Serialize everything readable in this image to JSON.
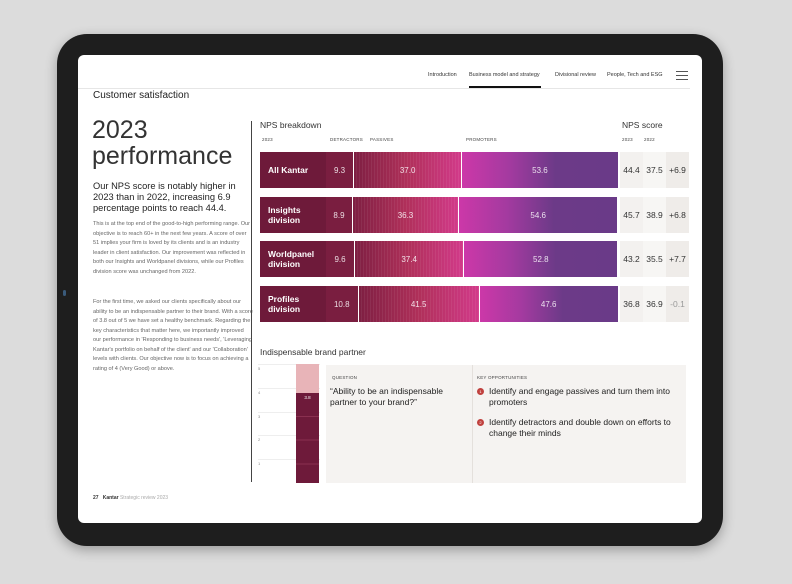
{
  "nav": {
    "items": [
      "Introduction",
      "Business model and strategy",
      "Divisional review",
      "People, Tech and ESG"
    ],
    "active": "Business model and strategy"
  },
  "section_title": "Customer satisfaction",
  "headline": {
    "line1": "2023",
    "line2": "performance"
  },
  "lead": "Our NPS score is notably higher in 2023 than in 2022, increasing 6.9 percentage points to reach 44.4.",
  "para1": "This is at the top end of the good-to-high performing range. Our objective is to reach 60+ in the next few years. A score of over 51 implies your firm is loved by its clients and is an industry leader in client satisfaction. Our improvement was reflected in both our Insights and Worldpanel divisions, while our Profiles division score was unchanged from 2022.",
  "para2": "For the first time, we asked our clients specifically about our ability to be an indispensable partner to their brand. With a score of 3.8 out of 5 we have set a healthy benchmark. Regarding the key characteristics that matter here, we importantly improved our performance in 'Responding to business needs', 'Leveraging Kantar's portfolio on behalf of the client' and our 'Collaboration' levels with clients. Our objective now is to focus on achieving a rating of 4 (Very Good) or above.",
  "footer": {
    "page": "27",
    "brand": "Kantar",
    "doc": "Strategic review 2023"
  },
  "chart_data": [
    {
      "type": "bar",
      "title": "NPS breakdown",
      "year_label": "2023",
      "headers": [
        "DETRACTORS",
        "PASSIVES",
        "PROMOTERS"
      ],
      "categories": [
        "All Kantar",
        "Insights division",
        "Worldpanel division",
        "Profiles division"
      ],
      "series": [
        {
          "name": "Detractors",
          "values": [
            9.3,
            8.9,
            9.6,
            10.8
          ]
        },
        {
          "name": "Passives",
          "values": [
            37.0,
            36.3,
            37.4,
            41.5
          ]
        },
        {
          "name": "Promoters",
          "values": [
            53.6,
            54.6,
            52.8,
            47.6
          ]
        }
      ],
      "score_title": "NPS score",
      "score_headers": [
        "2023",
        "2022"
      ],
      "scores_2023": [
        "44.4",
        "45.7",
        "43.2",
        "36.8"
      ],
      "scores_2022": [
        "37.5",
        "38.9",
        "35.5",
        "36.9"
      ],
      "change": [
        "+6.9",
        "+6.8",
        "+7.7",
        "-0.1"
      ]
    },
    {
      "type": "bar",
      "title": "Indispensable brand partner",
      "ticks": [
        "5",
        "4",
        "3",
        "2",
        "1"
      ],
      "ylim": [
        0,
        5
      ],
      "value": 3.8,
      "value_label": "3.8"
    }
  ],
  "question": {
    "label": "QUESTION",
    "text": "“Ability to be an indispensable partner to your brand?”"
  },
  "opportunities": {
    "label": "KEY OPPORTUNITIES",
    "items": [
      {
        "n": "1",
        "text": "Identify and engage passives and turn them into promoters"
      },
      {
        "n": "2",
        "text": "Identify detractors and double down on efforts to change their minds"
      }
    ]
  },
  "colors": {
    "detractor": "#7a1e40",
    "label_bg": "#6e1a3a",
    "promoter": "#6a3a88",
    "partner_bar": "#6e1a3a",
    "partner_rest": "#e8b4b8",
    "bullet": "#c0413e"
  }
}
